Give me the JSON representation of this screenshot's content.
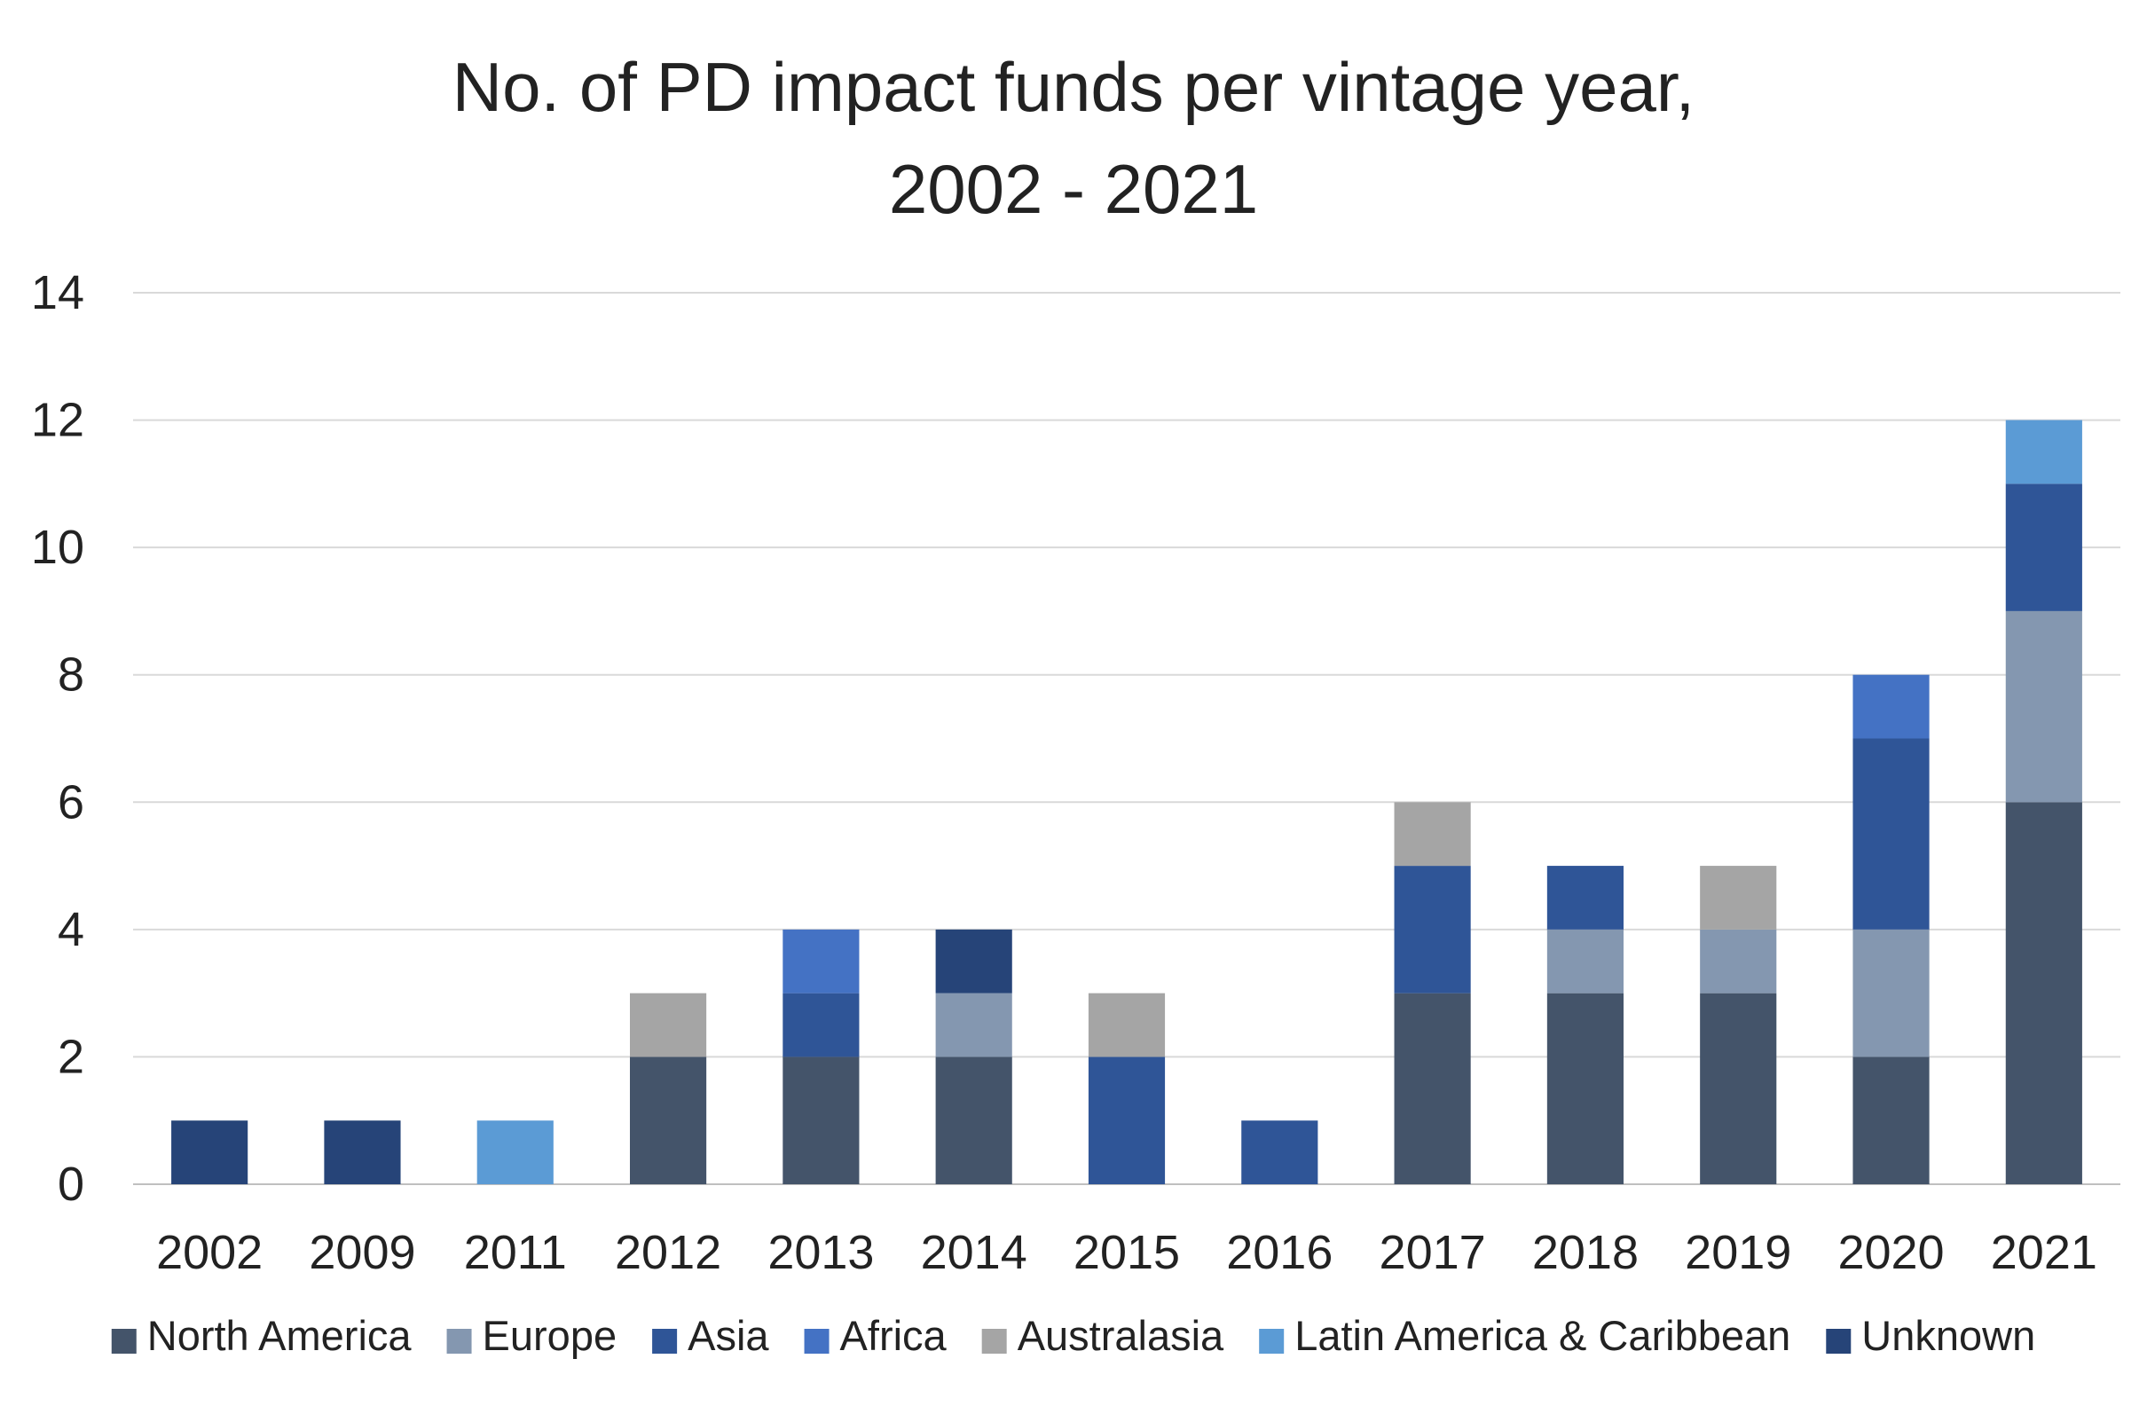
{
  "chart_data": {
    "type": "bar",
    "stacked": true,
    "title": "No. of PD impact funds per vintage year, 2002 - 2021",
    "title_lines": [
      "No. of PD impact funds per vintage year,",
      "2002 - 2021"
    ],
    "xlabel": "",
    "ylabel": "",
    "ylim": [
      0,
      14
    ],
    "yticks": [
      0,
      2,
      4,
      6,
      8,
      10,
      12,
      14
    ],
    "grid": true,
    "legend_position": "bottom",
    "categories": [
      "2002",
      "2009",
      "2011",
      "2012",
      "2013",
      "2014",
      "2015",
      "2016",
      "2017",
      "2018",
      "2019",
      "2020",
      "2021"
    ],
    "series": [
      {
        "name": "North America",
        "color": "#44546A",
        "values": [
          0,
          0,
          0,
          2,
          2,
          2,
          0,
          0,
          3,
          3,
          3,
          2,
          6
        ]
      },
      {
        "name": "Europe",
        "color": "#8497B0",
        "values": [
          0,
          0,
          0,
          0,
          0,
          1,
          0,
          0,
          0,
          1,
          1,
          2,
          3
        ]
      },
      {
        "name": "Asia",
        "color": "#2F5597",
        "values": [
          0,
          0,
          0,
          0,
          1,
          0,
          2,
          1,
          2,
          1,
          0,
          3,
          2
        ]
      },
      {
        "name": "Africa",
        "color": "#4472C4",
        "values": [
          0,
          0,
          0,
          0,
          1,
          0,
          0,
          0,
          0,
          0,
          0,
          1,
          0
        ]
      },
      {
        "name": "Australasia",
        "color": "#A5A5A5",
        "values": [
          0,
          0,
          0,
          1,
          0,
          0,
          1,
          0,
          1,
          0,
          1,
          0,
          0
        ]
      },
      {
        "name": "Latin America & Caribbean",
        "color": "#5B9BD5",
        "values": [
          0,
          0,
          1,
          0,
          0,
          0,
          0,
          0,
          0,
          0,
          0,
          0,
          1
        ]
      },
      {
        "name": "Unknown",
        "color": "#264478",
        "values": [
          1,
          1,
          0,
          0,
          0,
          1,
          0,
          0,
          0,
          0,
          0,
          0,
          0
        ]
      }
    ]
  }
}
